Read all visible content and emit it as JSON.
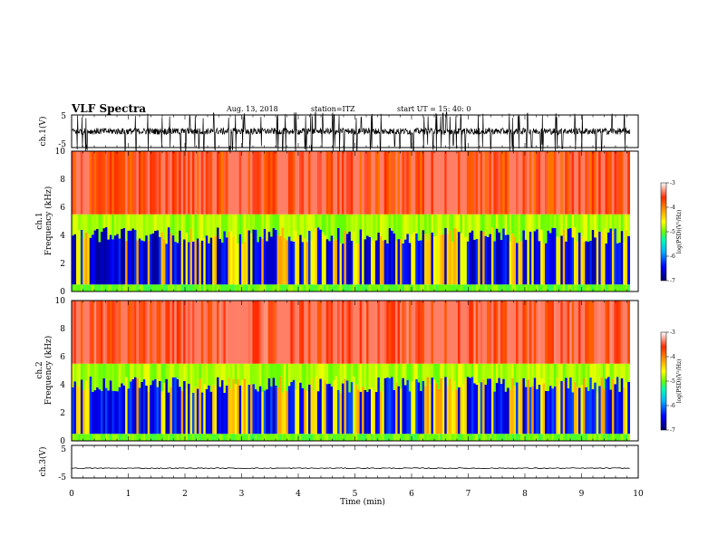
{
  "header": {
    "title": "VLF Spectra",
    "date": "Aug. 13, 2018",
    "station": "station=ITZ",
    "start": "start  UT  =  15: 40: 0"
  },
  "colors": {
    "colormap": [
      "#000066",
      "#0000ff",
      "#00b4ff",
      "#00ffaa",
      "#66ff00",
      "#ffff00",
      "#ff9900",
      "#ff2a00",
      "#ffffff"
    ],
    "trace": "#000000"
  },
  "chart_data": [
    {
      "type": "line",
      "panel": "ch1-waveform",
      "ylabel": "ch.1(V)",
      "yticks": [
        "5",
        "-5"
      ],
      "ylim": [
        -5,
        5
      ],
      "x_range_min": [
        0,
        9.85
      ],
      "description_values": {
        "baseline_V": 0.0,
        "spike_min_V": -4.0,
        "spike_max_V": 4.0
      }
    },
    {
      "type": "heatmap",
      "panel": "ch1-spectrogram",
      "ylabel_lines": [
        "ch.1",
        "Frequency  (kHz)"
      ],
      "yticks": [
        "0",
        "2",
        "4",
        "6",
        "8",
        "10"
      ],
      "ylim_kHz": [
        0,
        10
      ],
      "x_range_min": [
        0,
        9.85
      ],
      "colorbar": {
        "label": "log(PSD)(V²/Hz)",
        "ticks": [
          "-3",
          "-4",
          "-5",
          "-6",
          "-7"
        ],
        "range": [
          -7,
          -3
        ]
      },
      "bands": [
        {
          "freq_kHz": [
            0,
            0.5
          ],
          "log_psd": -5.0
        },
        {
          "freq_kHz": [
            0.5,
            4.0
          ],
          "log_psd": -6.6
        },
        {
          "freq_kHz": [
            4.0,
            5.5
          ],
          "log_psd": -4.8
        },
        {
          "freq_kHz": [
            5.5,
            10
          ],
          "log_psd": -3.6
        }
      ]
    },
    {
      "type": "heatmap",
      "panel": "ch2-spectrogram",
      "ylabel_lines": [
        "ch.2",
        "Frequency  (kHz)"
      ],
      "yticks": [
        "0",
        "2",
        "4",
        "6",
        "8",
        "10"
      ],
      "ylim_kHz": [
        0,
        10
      ],
      "x_range_min": [
        0,
        9.85
      ],
      "colorbar": {
        "label": "log(PSD)(V²/Hz)",
        "ticks": [
          "-3",
          "-4",
          "-5",
          "-6",
          "-7"
        ],
        "range": [
          -7,
          -3
        ]
      },
      "bands": [
        {
          "freq_kHz": [
            0,
            0.5
          ],
          "log_psd": -5.0
        },
        {
          "freq_kHz": [
            0.5,
            4.0
          ],
          "log_psd": -6.5
        },
        {
          "freq_kHz": [
            4.0,
            5.5
          ],
          "log_psd": -4.8
        },
        {
          "freq_kHz": [
            5.5,
            10
          ],
          "log_psd": -3.5
        }
      ]
    },
    {
      "type": "line",
      "panel": "ch3-waveform",
      "ylabel": "ch.3(V)",
      "yticks": [
        "5",
        "-5"
      ],
      "ylim": [
        -5,
        5
      ],
      "x_range_min": [
        0,
        9.85
      ],
      "description_values": {
        "baseline_V": -2.0
      }
    }
  ],
  "xaxis": {
    "label": "Time  (min)",
    "ticks": [
      "0",
      "1",
      "2",
      "3",
      "4",
      "5",
      "6",
      "7",
      "8",
      "9",
      "10"
    ],
    "xlim": [
      0,
      10
    ]
  }
}
